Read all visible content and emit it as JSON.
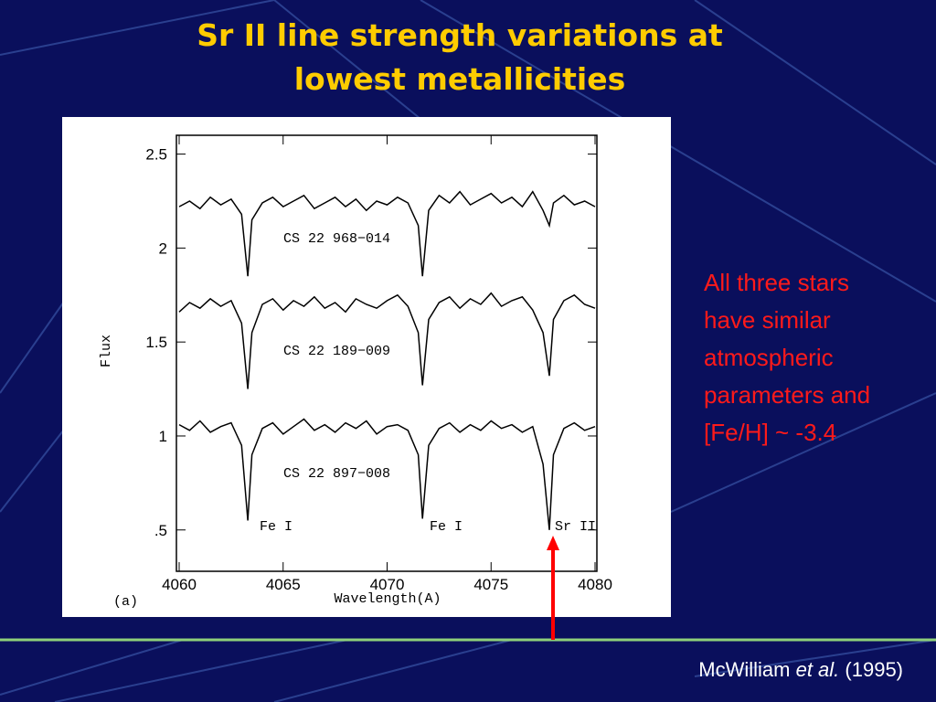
{
  "title": [
    "Sr II line strength variations at",
    "lowest metallicities"
  ],
  "body": [
    "All three stars",
    "have similar",
    "atmospheric",
    "parameters and",
    "[Fe/H] ~ -3.4"
  ],
  "citation": {
    "author": "McWilliam",
    "etal": "et al.",
    "year": "(1995)"
  },
  "chart_data": {
    "type": "line",
    "panel_label": "(a)",
    "x_label": "Wavelength(A)",
    "y_label": "Flux",
    "x": [
      4060,
      4060.5,
      4061,
      4061.5,
      4062,
      4062.5,
      4063,
      4063.3,
      4063.5,
      4064,
      4064.5,
      4065,
      4065.5,
      4066,
      4066.5,
      4067,
      4067.5,
      4068,
      4068.5,
      4069,
      4069.5,
      4070,
      4070.5,
      4071,
      4071.5,
      4071.7,
      4072,
      4072.5,
      4073,
      4073.5,
      4074,
      4074.5,
      4075,
      4075.5,
      4076,
      4076.5,
      4077,
      4077.5,
      4077.8,
      4078,
      4078.5,
      4079,
      4079.5,
      4080
    ],
    "series": [
      {
        "name": "CS 22 968−014",
        "color": "#000000",
        "values": [
          2.22,
          2.25,
          2.21,
          2.27,
          2.23,
          2.26,
          2.18,
          1.85,
          2.15,
          2.24,
          2.27,
          2.22,
          2.25,
          2.28,
          2.21,
          2.24,
          2.27,
          2.22,
          2.26,
          2.2,
          2.25,
          2.23,
          2.27,
          2.24,
          2.12,
          1.85,
          2.2,
          2.28,
          2.24,
          2.3,
          2.23,
          2.26,
          2.29,
          2.24,
          2.27,
          2.22,
          2.3,
          2.2,
          2.12,
          2.24,
          2.28,
          2.23,
          2.25,
          2.22
        ]
      },
      {
        "name": "CS 22 189−009",
        "color": "#000000",
        "values": [
          1.66,
          1.71,
          1.68,
          1.73,
          1.69,
          1.72,
          1.6,
          1.25,
          1.55,
          1.7,
          1.73,
          1.67,
          1.72,
          1.69,
          1.74,
          1.68,
          1.71,
          1.66,
          1.73,
          1.7,
          1.68,
          1.72,
          1.75,
          1.69,
          1.55,
          1.27,
          1.62,
          1.71,
          1.74,
          1.68,
          1.73,
          1.7,
          1.76,
          1.69,
          1.72,
          1.74,
          1.67,
          1.55,
          1.32,
          1.62,
          1.72,
          1.75,
          1.7,
          1.68
        ]
      },
      {
        "name": "CS 22 897−008",
        "color": "#000000",
        "values": [
          1.06,
          1.03,
          1.08,
          1.02,
          1.05,
          1.07,
          0.95,
          0.55,
          0.9,
          1.04,
          1.07,
          1.01,
          1.05,
          1.09,
          1.03,
          1.06,
          1.02,
          1.07,
          1.04,
          1.08,
          1.01,
          1.05,
          1.06,
          1.03,
          0.9,
          0.56,
          0.95,
          1.04,
          1.07,
          1.02,
          1.06,
          1.03,
          1.08,
          1.04,
          1.06,
          1.02,
          1.05,
          0.85,
          0.5,
          0.9,
          1.04,
          1.07,
          1.03,
          1.05
        ]
      }
    ],
    "line_labels": [
      "Fe I",
      "Fe I",
      "Sr II"
    ],
    "xlim": [
      4060,
      4080
    ],
    "xticks": [
      4060,
      4065,
      4070,
      4075,
      4080
    ],
    "ylim": [
      0.28,
      2.6
    ],
    "yticks": [
      {
        "value": 0.5,
        "label": ".5"
      },
      1,
      1.5,
      2,
      2.5
    ],
    "grid": false
  }
}
